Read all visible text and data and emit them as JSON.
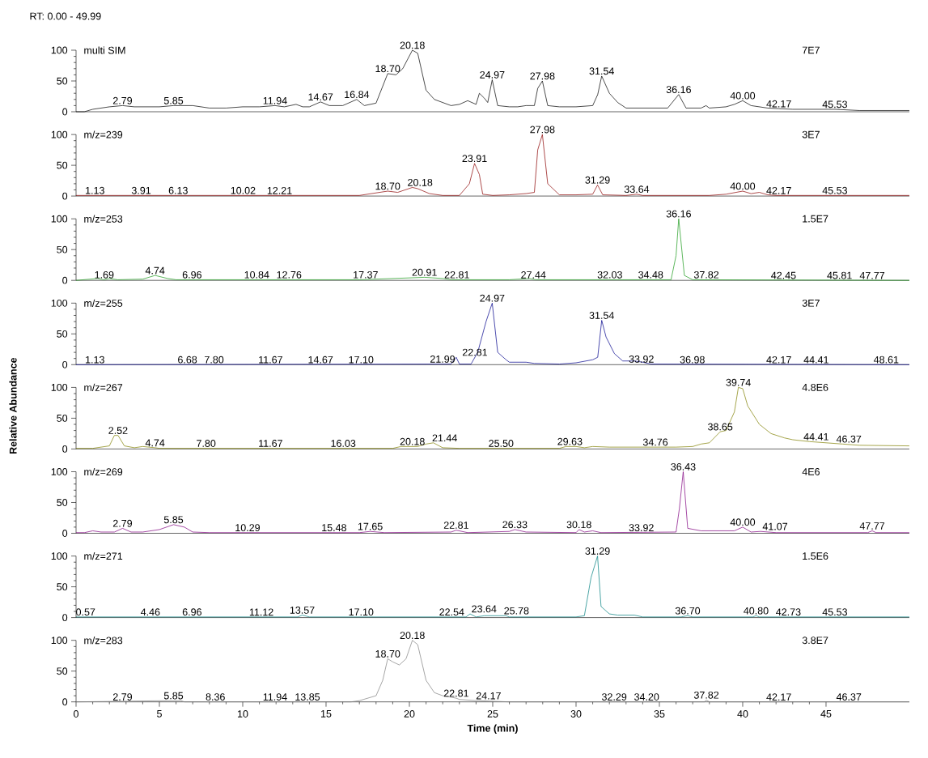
{
  "chart_data": [
    {
      "type": "line",
      "title": "multi SIM",
      "color": "#000000",
      "xlim": [
        0,
        50
      ],
      "ylim": [
        0,
        100
      ],
      "yticks": [
        0,
        50,
        100
      ],
      "tick_labels": "y",
      "x": [
        0,
        0.5,
        1,
        2,
        2.79,
        3.5,
        5,
        5.85,
        7,
        8,
        9,
        10,
        11,
        11.94,
        12.5,
        13.2,
        13.6,
        14,
        14.67,
        15.2,
        16,
        16.84,
        17.3,
        18,
        18.7,
        19.2,
        19.6,
        20.18,
        20.5,
        21,
        21.5,
        22.5,
        23,
        23.5,
        24,
        24.2,
        24.5,
        24.7,
        24.97,
        25.3,
        26,
        26.5,
        27,
        27.5,
        27.7,
        27.98,
        28.3,
        29,
        30,
        31,
        31.3,
        31.54,
        32,
        32.5,
        33,
        34,
        35,
        35.5,
        36.16,
        36.6,
        37.5,
        37.8,
        38,
        39,
        39.5,
        40,
        40.5,
        41.5,
        42.17,
        43,
        45.53,
        47,
        50
      ],
      "values": [
        0,
        0,
        4,
        8,
        10,
        8,
        8,
        10,
        10,
        6,
        6,
        8,
        8,
        10,
        8,
        12,
        8,
        8,
        16,
        10,
        10,
        20,
        10,
        14,
        62,
        60,
        70,
        100,
        95,
        35,
        20,
        10,
        12,
        18,
        12,
        30,
        22,
        15,
        52,
        10,
        8,
        8,
        10,
        10,
        38,
        50,
        10,
        8,
        8,
        10,
        28,
        58,
        30,
        15,
        6,
        6,
        6,
        6,
        28,
        6,
        6,
        10,
        6,
        8,
        12,
        18,
        10,
        6,
        5,
        4,
        4,
        2,
        2
      ],
      "annotations": [
        "RT: 0.00 - 49.99",
        "7E7",
        {
          "text": "2.79",
          "x": 2.79,
          "y": 10
        },
        {
          "text": "5.85",
          "x": 5.85,
          "y": 10
        },
        {
          "text": "11.94",
          "x": 11.94,
          "y": 10
        },
        {
          "text": "14.67",
          "x": 14.67,
          "y": 16
        },
        {
          "text": "16.84",
          "x": 16.84,
          "y": 20
        },
        {
          "text": "18.70",
          "x": 18.7,
          "y": 62
        },
        {
          "text": "20.18",
          "x": 20.18,
          "y": 100
        },
        {
          "text": "24.97",
          "x": 24.97,
          "y": 52
        },
        {
          "text": "27.98",
          "x": 27.98,
          "y": 50
        },
        {
          "text": "31.54",
          "x": 31.54,
          "y": 58
        },
        {
          "text": "36.16",
          "x": 36.16,
          "y": 28
        },
        {
          "text": "40.00",
          "x": 40.0,
          "y": 18
        },
        {
          "text": "42.17",
          "x": 42.17,
          "y": 5
        },
        {
          "text": "45.53",
          "x": 45.53,
          "y": 4
        }
      ]
    },
    {
      "type": "line",
      "title": "m/z=239",
      "color": "#8b0000",
      "xlim": [
        0,
        50
      ],
      "ylim": [
        0,
        100
      ],
      "yticks": [
        0,
        50,
        100
      ],
      "tick_labels": "y",
      "x": [
        0,
        17,
        18.7,
        19.3,
        20.18,
        20.5,
        21.2,
        22,
        23,
        23.6,
        23.91,
        24.2,
        24.4,
        25,
        26,
        27,
        27.5,
        27.7,
        27.98,
        28.3,
        29,
        30,
        31,
        31.29,
        31.6,
        33,
        33.64,
        34,
        38,
        39,
        40,
        40.5,
        41,
        41.5,
        42,
        50
      ],
      "values": [
        1,
        1,
        8,
        6,
        14,
        12,
        4,
        1,
        1,
        20,
        53,
        35,
        3,
        1,
        2,
        4,
        6,
        75,
        100,
        20,
        2,
        2,
        3,
        18,
        2,
        1,
        3,
        1,
        1,
        3,
        8,
        4,
        6,
        2,
        1,
        1
      ],
      "annotations": [
        "3E7",
        {
          "text": "1.13",
          "x": 1.13,
          "y": 1
        },
        {
          "text": "3.91",
          "x": 3.91,
          "y": 1
        },
        {
          "text": "6.13",
          "x": 6.13,
          "y": 1
        },
        {
          "text": "10.02",
          "x": 10.02,
          "y": 1
        },
        {
          "text": "12.21",
          "x": 12.21,
          "y": 1
        },
        {
          "text": "18.70",
          "x": 18.7,
          "y": 8
        },
        {
          "text": "20.18",
          "x": 20.18,
          "y": 14
        },
        {
          "text": "23.91",
          "x": 23.91,
          "y": 53
        },
        {
          "text": "27.98",
          "x": 27.98,
          "y": 100
        },
        {
          "text": "31.29",
          "x": 31.29,
          "y": 18
        },
        {
          "text": "33.64",
          "x": 33.64,
          "y": 3
        },
        {
          "text": "40.00",
          "x": 40.0,
          "y": 8
        },
        {
          "text": "42.17",
          "x": 42.17,
          "y": 1
        },
        {
          "text": "45.53",
          "x": 45.53,
          "y": 1
        }
      ]
    },
    {
      "type": "line",
      "title": "m/z=253",
      "color": "#1a9a1a",
      "xlim": [
        0,
        50
      ],
      "ylim": [
        0,
        100
      ],
      "yticks": [
        0,
        50,
        100
      ],
      "tick_labels": "y",
      "x": [
        0,
        1.3,
        1.69,
        2,
        2.5,
        4,
        4.74,
        5.5,
        6,
        17,
        20,
        20.91,
        22,
        22.5,
        26,
        27.2,
        27.6,
        35.7,
        36.0,
        36.16,
        36.5,
        37,
        50
      ],
      "values": [
        0,
        3,
        1,
        3,
        1,
        2,
        8,
        3,
        1,
        1,
        4,
        5,
        3,
        1,
        1,
        3,
        1,
        1,
        40,
        100,
        8,
        1,
        0
      ],
      "annotations": [
        "1.5E7",
        {
          "text": "1.69",
          "x": 1.69,
          "y": 1
        },
        {
          "text": "4.74",
          "x": 4.74,
          "y": 8
        },
        {
          "text": "6.96",
          "x": 6.96,
          "y": 1
        },
        {
          "text": "10.84",
          "x": 10.84,
          "y": 1
        },
        {
          "text": "12.76",
          "x": 12.76,
          "y": 1
        },
        {
          "text": "17.37",
          "x": 17.37,
          "y": 1
        },
        {
          "text": "20.91",
          "x": 20.91,
          "y": 5
        },
        {
          "text": "22.81",
          "x": 22.81,
          "y": 1
        },
        {
          "text": "27.44",
          "x": 27.44,
          "y": 1
        },
        {
          "text": "32.03",
          "x": 32.03,
          "y": 1
        },
        {
          "text": "34.48",
          "x": 34.48,
          "y": 1
        },
        {
          "text": "36.16",
          "x": 36.16,
          "y": 100
        },
        {
          "text": "37.82",
          "x": 37.82,
          "y": 1
        },
        {
          "text": "42.45",
          "x": 42.45,
          "y": 0
        },
        {
          "text": "45.81",
          "x": 45.81,
          "y": 0
        },
        {
          "text": "47.77",
          "x": 47.77,
          "y": 0
        }
      ]
    },
    {
      "type": "line",
      "title": "m/z=255",
      "color": "#00008b",
      "xlim": [
        0,
        50
      ],
      "ylim": [
        0,
        100
      ],
      "yticks": [
        0,
        50,
        100
      ],
      "tick_labels": "y",
      "x": [
        0,
        22.5,
        22.81,
        23,
        23.7,
        24.1,
        24.6,
        24.97,
        25.3,
        25.8,
        26,
        27,
        27.5,
        29,
        30,
        31,
        31.3,
        31.54,
        31.8,
        32.3,
        32.8,
        33.5,
        34,
        34.5,
        50
      ],
      "values": [
        0,
        1,
        12,
        1,
        1,
        20,
        70,
        100,
        20,
        8,
        4,
        4,
        2,
        1,
        3,
        8,
        12,
        72,
        45,
        18,
        6,
        6,
        4,
        1,
        0
      ],
      "annotations": [
        "3E7",
        {
          "text": "1.13",
          "x": 1.13,
          "y": 0
        },
        {
          "text": "6.68",
          "x": 6.68,
          "y": 0
        },
        {
          "text": "7.80",
          "x": 7.8,
          "y": 0
        },
        {
          "text": "11.67",
          "x": 11.67,
          "y": 0
        },
        {
          "text": "14.67",
          "x": 14.67,
          "y": 0
        },
        {
          "text": "17.10",
          "x": 17.1,
          "y": 0
        },
        {
          "text": "21.99",
          "x": 21.99,
          "y": 1
        },
        {
          "text": "22.81",
          "x": 22.81,
          "y": 12
        },
        {
          "text": "24.97",
          "x": 24.97,
          "y": 100
        },
        {
          "text": "31.54",
          "x": 31.54,
          "y": 72
        },
        {
          "text": "33.92",
          "x": 33.92,
          "y": 1
        },
        {
          "text": "36.98",
          "x": 36.98,
          "y": 0
        },
        {
          "text": "42.17",
          "x": 42.17,
          "y": 0
        },
        {
          "text": "44.41",
          "x": 44.41,
          "y": 0
        },
        {
          "text": "48.61",
          "x": 48.61,
          "y": 0
        }
      ]
    },
    {
      "type": "line",
      "title": "m/z=267",
      "ylabel": "Relative Abundance",
      "color": "#808000",
      "xlim": [
        0,
        50
      ],
      "ylim": [
        0,
        100
      ],
      "yticks": [
        0,
        50,
        100
      ],
      "tick_labels": "y",
      "x": [
        0,
        1,
        2,
        2.3,
        2.52,
        2.9,
        3.5,
        4,
        4.74,
        5,
        19,
        19.5,
        20.5,
        21,
        21.44,
        22,
        23,
        29,
        29.4,
        30,
        30.5,
        31,
        32,
        35,
        36,
        37,
        37.5,
        38,
        38.65,
        39,
        39.5,
        39.74,
        40,
        40.3,
        41,
        41.7,
        42.5,
        43,
        44,
        45,
        46,
        47,
        50
      ],
      "values": [
        1,
        1,
        5,
        22,
        22,
        5,
        2,
        4,
        2,
        1,
        1,
        4,
        4,
        8,
        10,
        2,
        1,
        1,
        4,
        4,
        2,
        4,
        3,
        3,
        3,
        4,
        8,
        10,
        28,
        30,
        60,
        100,
        98,
        70,
        40,
        25,
        18,
        15,
        12,
        10,
        8,
        6,
        5
      ],
      "annotations": [
        "4.8E6",
        {
          "text": "2.52",
          "x": 2.52,
          "y": 22
        },
        {
          "text": "4.74",
          "x": 4.74,
          "y": 2
        },
        {
          "text": "7.80",
          "x": 7.8,
          "y": 1
        },
        {
          "text": "11.67",
          "x": 11.67,
          "y": 1
        },
        {
          "text": "16.03",
          "x": 16.03,
          "y": 1
        },
        {
          "text": "20.18",
          "x": 20.18,
          "y": 4
        },
        {
          "text": "21.44",
          "x": 21.44,
          "y": 10
        },
        {
          "text": "25.50",
          "x": 25.5,
          "y": 1
        },
        {
          "text": "29.63",
          "x": 29.63,
          "y": 4
        },
        {
          "text": "34.76",
          "x": 34.76,
          "y": 3
        },
        {
          "text": "38.65",
          "x": 38.65,
          "y": 28
        },
        {
          "text": "39.74",
          "x": 39.74,
          "y": 100
        },
        {
          "text": "44.41",
          "x": 44.41,
          "y": 12
        },
        {
          "text": "46.37",
          "x": 46.37,
          "y": 8
        }
      ]
    },
    {
      "type": "line",
      "title": "m/z=269",
      "color": "#800080",
      "xlim": [
        0,
        50
      ],
      "ylim": [
        0,
        100
      ],
      "yticks": [
        0,
        50,
        100
      ],
      "tick_labels": "y",
      "x": [
        0,
        0.5,
        1,
        1.5,
        2.3,
        2.79,
        3.3,
        4,
        5,
        5.85,
        6.5,
        7,
        8,
        17,
        17.65,
        18.5,
        22.5,
        22.81,
        23.5,
        26,
        26.33,
        27,
        30,
        30.18,
        30.5,
        31,
        31.5,
        36,
        36.2,
        36.43,
        36.7,
        37.5,
        39.5,
        40,
        40.5,
        41.07,
        42,
        47.5,
        47.77,
        48,
        50
      ],
      "values": [
        1,
        1,
        4,
        2,
        2,
        8,
        2,
        2,
        6,
        14,
        10,
        2,
        1,
        1,
        3,
        1,
        2,
        5,
        1,
        3,
        6,
        2,
        1,
        6,
        2,
        4,
        1,
        2,
        40,
        100,
        8,
        4,
        4,
        10,
        2,
        3,
        1,
        1,
        4,
        1,
        1
      ],
      "annotations": [
        "4E6",
        {
          "text": "2.79",
          "x": 2.79,
          "y": 8
        },
        {
          "text": "5.85",
          "x": 5.85,
          "y": 14
        },
        {
          "text": "10.29",
          "x": 10.29,
          "y": 1
        },
        {
          "text": "15.48",
          "x": 15.48,
          "y": 1
        },
        {
          "text": "17.65",
          "x": 17.65,
          "y": 3
        },
        {
          "text": "22.81",
          "x": 22.81,
          "y": 5
        },
        {
          "text": "26.33",
          "x": 26.33,
          "y": 6
        },
        {
          "text": "30.18",
          "x": 30.18,
          "y": 6
        },
        {
          "text": "33.92",
          "x": 33.92,
          "y": 1
        },
        {
          "text": "36.43",
          "x": 36.43,
          "y": 100
        },
        {
          "text": "40.00",
          "x": 40.0,
          "y": 10
        },
        {
          "text": "41.07",
          "x": 41.07,
          "y": 3
        },
        {
          "text": "47.77",
          "x": 47.77,
          "y": 4
        }
      ]
    },
    {
      "type": "line",
      "title": "m/z=271",
      "color": "#008080",
      "xlim": [
        0,
        50
      ],
      "ylim": [
        0,
        100
      ],
      "yticks": [
        0,
        50,
        100
      ],
      "tick_labels": "y",
      "x": [
        0,
        13.3,
        13.57,
        14,
        23.4,
        23.64,
        24,
        24.5,
        25,
        25.78,
        26,
        30,
        30.5,
        30.9,
        31.29,
        31.5,
        32,
        32.5,
        33.5,
        34,
        36.3,
        36.7,
        37,
        40.6,
        40.8,
        41,
        50
      ],
      "values": [
        1,
        1,
        4,
        1,
        1,
        6,
        1,
        3,
        3,
        3,
        1,
        1,
        3,
        65,
        100,
        18,
        6,
        4,
        4,
        1,
        1,
        3,
        1,
        1,
        3,
        1,
        1
      ],
      "annotations": [
        "1.5E6",
        {
          "text": "0.57",
          "x": 0.57,
          "y": 1
        },
        {
          "text": "4.46",
          "x": 4.46,
          "y": 1
        },
        {
          "text": "6.96",
          "x": 6.96,
          "y": 1
        },
        {
          "text": "11.12",
          "x": 11.12,
          "y": 1
        },
        {
          "text": "13.57",
          "x": 13.57,
          "y": 4
        },
        {
          "text": "17.10",
          "x": 17.1,
          "y": 1
        },
        {
          "text": "22.54",
          "x": 22.54,
          "y": 1
        },
        {
          "text": "23.64",
          "x": 23.64,
          "y": 6
        },
        {
          "text": "25.78",
          "x": 25.78,
          "y": 3
        },
        {
          "text": "31.29",
          "x": 31.29,
          "y": 100
        },
        {
          "text": "36.70",
          "x": 36.7,
          "y": 3
        },
        {
          "text": "40.80",
          "x": 40.8,
          "y": 3
        },
        {
          "text": "42.73",
          "x": 42.73,
          "y": 1
        },
        {
          "text": "45.53",
          "x": 45.53,
          "y": 1
        }
      ]
    },
    {
      "type": "line",
      "title": "m/z=283",
      "xlabel": "Time (min)",
      "color": "#808080",
      "xlim": [
        0,
        50
      ],
      "ylim": [
        0,
        100
      ],
      "yticks": [
        0,
        50,
        100
      ],
      "xticks": [
        0,
        5,
        10,
        15,
        20,
        25,
        30,
        35,
        40,
        45
      ],
      "x": [
        0,
        5.5,
        6.3,
        6.5,
        16.5,
        17,
        18,
        18.4,
        18.7,
        19,
        19.4,
        19.8,
        20.18,
        20.5,
        21,
        21.5,
        22,
        22.81,
        23,
        24,
        24.17,
        25,
        26,
        37.7,
        37.82,
        38,
        50
      ],
      "values": [
        0,
        2,
        2,
        0,
        0,
        2,
        10,
        35,
        70,
        65,
        60,
        70,
        100,
        93,
        35,
        15,
        10,
        6,
        4,
        2,
        2,
        1,
        0,
        0,
        3,
        0,
        0
      ],
      "annotations": [
        "3.8E7",
        {
          "text": "2.79",
          "x": 2.79,
          "y": 0
        },
        {
          "text": "5.85",
          "x": 5.85,
          "y": 2
        },
        {
          "text": "8.36",
          "x": 8.36,
          "y": 0
        },
        {
          "text": "11.94",
          "x": 11.94,
          "y": 0
        },
        {
          "text": "13.85",
          "x": 13.85,
          "y": 0
        },
        {
          "text": "18.70",
          "x": 18.7,
          "y": 70
        },
        {
          "text": "20.18",
          "x": 20.18,
          "y": 100
        },
        {
          "text": "22.81",
          "x": 22.81,
          "y": 6
        },
        {
          "text": "24.17",
          "x": 24.17,
          "y": 2
        },
        {
          "text": "32.29",
          "x": 32.29,
          "y": 0
        },
        {
          "text": "34.20",
          "x": 34.2,
          "y": 0
        },
        {
          "text": "37.82",
          "x": 37.82,
          "y": 3
        },
        {
          "text": "42.17",
          "x": 42.17,
          "y": 0
        },
        {
          "text": "46.37",
          "x": 46.37,
          "y": 0
        }
      ]
    }
  ]
}
